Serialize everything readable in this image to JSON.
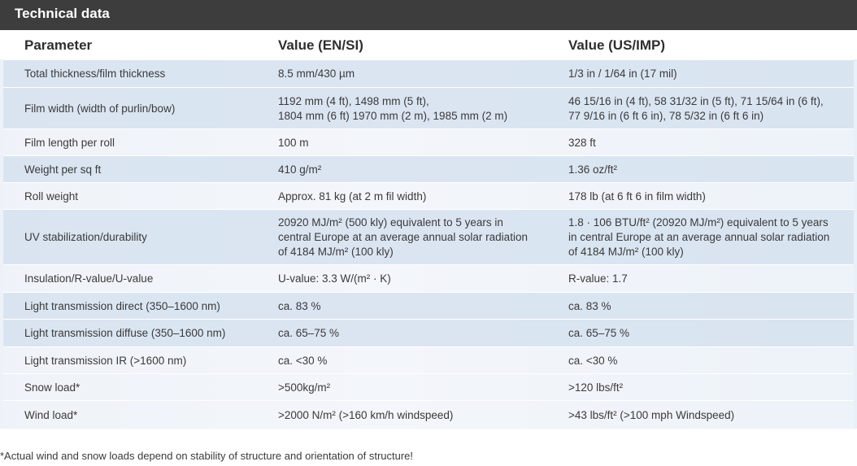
{
  "header": {
    "title": "Technical data"
  },
  "columns": [
    "Parameter",
    "Value (EN/SI)",
    "Value (US/IMP)"
  ],
  "rows": [
    [
      "Total thickness/film thickness",
      "8.5 mm/430 µm",
      "1/3 in / 1/64 in (17 mil)"
    ],
    [
      "Film width (width of purlin/bow)",
      "1192 mm (4 ft), 1498 mm (5 ft),\n1804 mm (6 ft) 1970 mm (2 m), 1985 mm (2 m)",
      "46 15/16 in (4 ft), 58 31/32 in (5 ft), 71 15/64 in (6 ft),\n77 9/16 in (6 ft 6 in), 78 5/32 in (6 ft 6 in)"
    ],
    [
      "Film length per roll",
      "100 m",
      "328 ft"
    ],
    [
      "Weight per sq ft",
      "410 g/m²",
      "1.36 oz/ft²"
    ],
    [
      "Roll weight",
      "Approx. 81 kg (at 2 m fil width)",
      "178 lb (at 6 ft 6 in film width)"
    ],
    [
      "UV stabilization/durability",
      "20920 MJ/m² (500 kly) equivalent to 5 years in\ncentral Europe at an average annual solar radiation\nof 4184 MJ/m² (100 kly)",
      "1.8 · 106 BTU/ft² (20920 MJ/m²) equivalent to 5 years\nin central Europe at an average annual solar radiation\nof 4184 MJ/m² (100 kly)"
    ],
    [
      "Insulation/R-value/U-value",
      "U-value: 3.3 W/(m² · K)",
      "R-value: 1.7"
    ],
    [
      "Light transmission direct (350–1600 nm)",
      "ca. 83 %",
      "ca. 83 %"
    ],
    [
      "Light transmission diffuse (350–1600 nm)",
      "ca. 65–75 %",
      "ca. 65–75 %"
    ],
    [
      "Light transmission IR (>1600 nm)",
      "ca. <30 %",
      "ca. <30 %"
    ],
    [
      "Snow load*",
      ">500kg/m²",
      ">120 lbs/ft²"
    ],
    [
      "Wind load*",
      ">2000 N/m² (>160 km/h windspeed)",
      ">43 lbs/ft² (>100 mph Windspeed)"
    ]
  ],
  "footnote": "*Actual wind and snow loads depend on stability of structure and orientation of structure!"
}
